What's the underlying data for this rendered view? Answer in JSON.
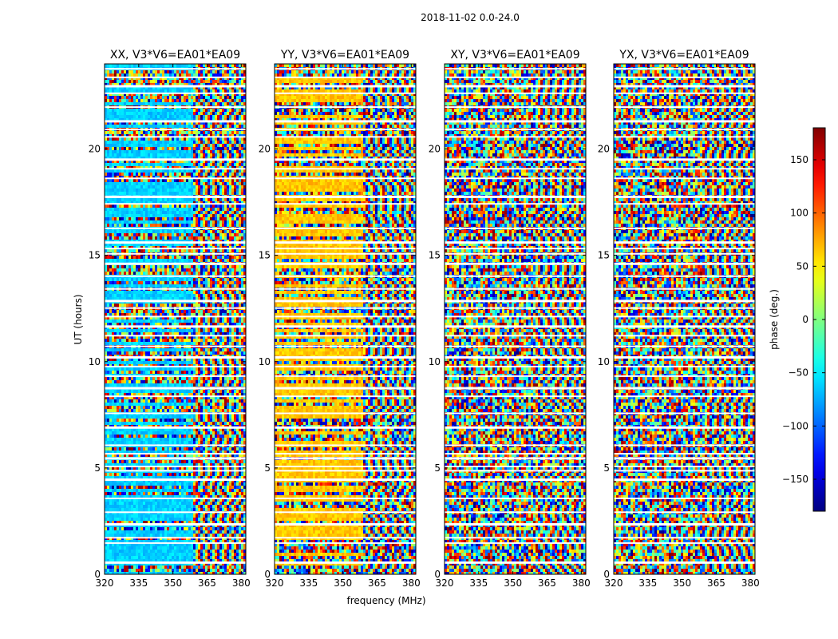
{
  "figure": {
    "suptitle": "2018-11-02 0.0-24.0"
  },
  "chart_data": {
    "type": "heatmap",
    "title": "2018-11-02 0.0-24.0",
    "xlabel": "frequency (MHz)",
    "ylabel": "UT (hours)",
    "xlim": [
      320,
      382
    ],
    "ylim": [
      0,
      24
    ],
    "x_ticks": [
      320,
      335,
      350,
      365,
      380
    ],
    "y_ticks": [
      0,
      5,
      10,
      15,
      20
    ],
    "panels": [
      {
        "title": "XX, V3*V6=EA01*EA09",
        "polarization": "XX",
        "baseline_color": "cyan"
      },
      {
        "title": "YY, V3*V6=EA01*EA09",
        "polarization": "YY",
        "baseline_color": "orange"
      },
      {
        "title": "XY, V3*V6=EA01*EA09",
        "polarization": "XY",
        "baseline_color": "noise"
      },
      {
        "title": "YX, V3*V6=EA01*EA09",
        "polarization": "YX",
        "baseline_color": "noise"
      }
    ],
    "colorbar": {
      "label": "phase (deg.)",
      "range": [
        -180,
        180
      ],
      "ticks": [
        150,
        100,
        50,
        0,
        -50,
        -100,
        -150
      ],
      "tick_labels": [
        "150",
        "100",
        "50",
        "0",
        "−50",
        "−100",
        "−150"
      ],
      "colormap": "jet"
    },
    "data_gaps_hours": [
      0.55,
      1.45,
      1.7,
      2.35,
      2.9,
      3.55,
      4.45,
      4.85,
      5.05,
      5.45,
      5.65,
      6.05,
      6.9,
      7.55,
      8.35,
      8.75,
      9.3,
      9.75,
      10.2,
      10.7,
      11.2,
      11.65,
      12.1,
      12.5,
      12.85,
      13.4,
      14.0,
      14.6,
      15.05,
      15.3,
      15.6,
      16.25,
      17.4,
      17.75,
      18.6,
      19.05,
      19.5,
      20.55,
      20.9,
      21.3,
      21.95,
      22.6,
      22.95,
      23.35,
      23.75
    ]
  }
}
